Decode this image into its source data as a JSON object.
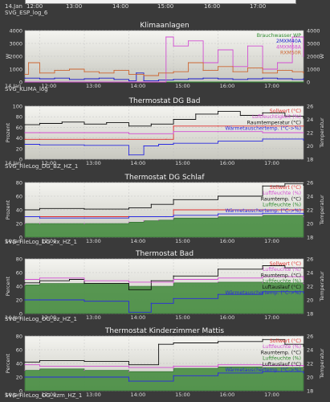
{
  "top": {
    "ticks": [
      "14.Jan",
      "12:00",
      "13:00",
      "14:00",
      "15:00",
      "16:00",
      "17:00"
    ],
    "file_label": "SVG_ESP_log_6"
  },
  "charts": [
    {
      "title": "Klimaanlagen",
      "file_label": "SVG_KLIMA_log",
      "ylabel_left": "W",
      "ylabel_right": "W",
      "left_ticks": [
        "4000",
        "3000",
        "2000",
        "1000",
        "0"
      ],
      "right_ticks": [
        "4000",
        "3000",
        "2000",
        "1000",
        "0"
      ],
      "x_ticks": [
        "14.Jan",
        "12:00",
        "13:00",
        "14:00",
        "15:00",
        "16:00",
        "17:00"
      ],
      "legend": [
        {
          "label": "Brauchwasser WP",
          "color": "#2e8b2e"
        },
        {
          "label": "2MXM40A",
          "color": "#1a1acc"
        },
        {
          "label": "4MXM68A",
          "color": "#d24fd2"
        },
        {
          "label": "RXM50R",
          "color": "#cc6633"
        }
      ]
    },
    {
      "title": "Thermostat DG Bad",
      "file_label": "SVG_FileLog_DG_BZ_HZ_1",
      "ylabel_left": "Prozent",
      "ylabel_right": "Temperatur",
      "left_ticks": [
        "100",
        "80",
        "60",
        "40",
        "20",
        "0"
      ],
      "right_ticks": [
        "26",
        "24",
        "22",
        "20",
        "18"
      ],
      "x_ticks": [
        "14.Jan",
        "12:00",
        "13:00",
        "14:00",
        "15:00",
        "16:00",
        "17:00"
      ],
      "legend": [
        {
          "label": "Sollwert (°C)",
          "color": "#e03030"
        },
        {
          "label": "Luftfeuchtigkeit (%)",
          "color": "#d24fd2"
        },
        {
          "label": "Raumtemperatur (°C)",
          "color": "#111111"
        },
        {
          "label": "Wärmetauschertemp. (°C->%)",
          "color": "#2a2ae0"
        }
      ]
    },
    {
      "title": "Thermostat DG Schlaf",
      "file_label": "SVG_FileLog_DG_xx_HZ_1",
      "ylabel_left": "Prozent",
      "ylabel_right": "Temperatur",
      "left_ticks": [
        "80",
        "60",
        "40",
        "20",
        "0"
      ],
      "right_ticks": [
        "26",
        "24",
        "22",
        "20",
        "18"
      ],
      "x_ticks": [
        "14.Jan",
        "12:00",
        "13:00",
        "14:00",
        "15:00",
        "16:00",
        "17:00"
      ],
      "legend": [
        {
          "label": "Sollwert (°C)",
          "color": "#e03030"
        },
        {
          "label": "Luftfeuchte (%)",
          "color": "#d24fd2"
        },
        {
          "label": "Raumtemp. (°C)",
          "color": "#111111"
        },
        {
          "label": "Luftfeuchte (%)",
          "color": "#2e8b2e"
        },
        {
          "label": "Wärmetauschertemp. (°C->%)",
          "color": "#2a2ae0"
        }
      ]
    },
    {
      "title": "Thermostat Bad",
      "file_label": "SVG_FileLog_OG_bz_HZ_1",
      "ylabel_left": "Percent",
      "ylabel_right": "Temperatur",
      "left_ticks": [
        "80",
        "60",
        "40",
        "20",
        "0"
      ],
      "right_ticks": [
        "26",
        "24",
        "22",
        "20",
        "18"
      ],
      "x_ticks": [
        "14.Jan",
        "12:00",
        "13:00",
        "14:00",
        "15:00",
        "16:00",
        "17:00"
      ],
      "legend": [
        {
          "label": "Sollwert (°C)",
          "color": "#e03030"
        },
        {
          "label": "Luftfeuchte (%)",
          "color": "#d24fd2"
        },
        {
          "label": "Raumtemp. (°C)",
          "color": "#111111"
        },
        {
          "label": "Luftfeuchte (%)",
          "color": "#2e8b2e"
        },
        {
          "label": "Luftauslauf (°C)",
          "color": "#111111"
        },
        {
          "label": "Wärmetauschertemp. (°C->%)",
          "color": "#2a2ae0"
        }
      ]
    },
    {
      "title": "Thermostat Kinderzimmer Mattis",
      "file_label": "SVG_FileLog_OG_kzm_HZ_1",
      "ylabel_left": "Percent",
      "ylabel_right": "Temperatur",
      "left_ticks": [
        "80",
        "60",
        "40",
        "20",
        "0"
      ],
      "right_ticks": [
        "26",
        "24",
        "22",
        "20",
        "18"
      ],
      "x_ticks": [
        "14.Jan",
        "12:00",
        "13:00",
        "14:00",
        "15:00",
        "16:00",
        "17:00"
      ],
      "legend": [
        {
          "label": "Sollwert (°C)",
          "color": "#e03030"
        },
        {
          "label": "Luftfeuchte (%)",
          "color": "#d24fd2"
        },
        {
          "label": "Raumtemp. (°C)",
          "color": "#111111"
        },
        {
          "label": "Luftfeuchte (%)",
          "color": "#2e8b2e"
        },
        {
          "label": "Luftauslauf (°C)",
          "color": "#111111"
        },
        {
          "label": "Wärmetauschertemp. (°C->%)",
          "color": "#2a2ae0"
        }
      ]
    }
  ],
  "chart_data": [
    {
      "type": "line",
      "title": "Klimaanlagen",
      "ylabel": "W",
      "ylim": [
        0,
        4000
      ],
      "x_range": [
        "11:40",
        "17:55"
      ],
      "series": [
        {
          "name": "Brauchwasser WP",
          "x": [
            "11:40",
            "12:00",
            "12:20",
            "12:40",
            "13:00",
            "13:20",
            "13:40",
            "14:00",
            "14:20",
            "14:40",
            "15:00",
            "15:20",
            "15:40",
            "16:00",
            "16:20",
            "16:40",
            "17:00",
            "17:20",
            "17:40",
            "17:55"
          ],
          "values": [
            0,
            0,
            0,
            0,
            0,
            0,
            0,
            0,
            0,
            0,
            0,
            0,
            0,
            0,
            0,
            0,
            0,
            0,
            0,
            0
          ]
        },
        {
          "name": "2MXM40A",
          "x": [
            "11:40",
            "12:00",
            "12:20",
            "12:40",
            "13:00",
            "13:20",
            "13:40",
            "14:00",
            "14:10",
            "14:20",
            "14:40",
            "15:00",
            "15:20",
            "15:40",
            "16:00",
            "16:20",
            "16:40",
            "17:00",
            "17:20",
            "17:40",
            "17:55"
          ],
          "values": [
            300,
            250,
            300,
            200,
            250,
            300,
            200,
            100,
            700,
            100,
            150,
            200,
            250,
            300,
            250,
            200,
            250,
            300,
            250,
            200,
            250
          ]
        },
        {
          "name": "4MXM68A",
          "x": [
            "11:40",
            "12:00",
            "12:20",
            "12:40",
            "13:00",
            "13:20",
            "13:40",
            "14:00",
            "14:20",
            "14:40",
            "14:50",
            "15:00",
            "15:20",
            "15:40",
            "16:00",
            "16:20",
            "16:40",
            "17:00",
            "17:20",
            "17:40",
            "17:55"
          ],
          "values": [
            0,
            0,
            0,
            0,
            0,
            0,
            0,
            0,
            0,
            0,
            3500,
            2800,
            3200,
            1500,
            2500,
            1200,
            2800,
            1000,
            1500,
            3500,
            2000
          ]
        },
        {
          "name": "RXM50R",
          "x": [
            "11:40",
            "11:45",
            "12:00",
            "12:20",
            "12:40",
            "13:00",
            "13:20",
            "13:40",
            "14:00",
            "14:20",
            "14:40",
            "15:00",
            "15:20",
            "15:40",
            "16:00",
            "16:20",
            "16:40",
            "17:00",
            "17:20",
            "17:40",
            "17:55"
          ],
          "values": [
            600,
            1500,
            700,
            900,
            1000,
            800,
            700,
            900,
            600,
            500,
            700,
            800,
            1500,
            900,
            1200,
            800,
            1100,
            700,
            900,
            800,
            700
          ]
        }
      ]
    },
    {
      "type": "line",
      "title": "Thermostat DG Bad",
      "ylabel": "Prozent",
      "ylim": [
        0,
        100
      ],
      "y2label": "Temperatur",
      "y2lim": [
        18,
        26
      ],
      "series": [
        {
          "name": "Sollwert (°C)",
          "axis": "right",
          "x": [
            "11:40",
            "12:00",
            "13:00",
            "14:00",
            "14:50",
            "15:00",
            "16:00",
            "17:00",
            "17:55"
          ],
          "values": [
            21,
            21,
            21,
            21,
            21,
            23,
            23,
            23,
            23
          ]
        },
        {
          "name": "Raumtemperatur (°C)",
          "axis": "right",
          "x": [
            "11:40",
            "12:00",
            "12:30",
            "13:00",
            "13:30",
            "14:00",
            "14:30",
            "15:00",
            "15:30",
            "16:00",
            "16:30",
            "17:00",
            "17:30",
            "17:55"
          ],
          "values": [
            23.2,
            23.4,
            23.6,
            23.3,
            23.5,
            23.0,
            23.3,
            24.0,
            24.8,
            25.2,
            24.6,
            25.0,
            24.5,
            24.2
          ]
        },
        {
          "name": "Wärmetauschertemp. (°C->%)",
          "axis": "left",
          "x": [
            "11:40",
            "12:00",
            "13:00",
            "14:00",
            "14:20",
            "14:40",
            "15:00",
            "16:00",
            "17:00",
            "17:55"
          ],
          "values": [
            28,
            27,
            26,
            8,
            25,
            28,
            30,
            34,
            38,
            36
          ]
        },
        {
          "name": "Luftfeuchtigkeit (%)",
          "axis": "left",
          "x": [
            "11:40",
            "12:00",
            "13:00",
            "14:00",
            "15:00",
            "16:00",
            "17:00",
            "17:55"
          ],
          "values": [
            50,
            50,
            50,
            48,
            52,
            52,
            50,
            50
          ]
        }
      ]
    },
    {
      "type": "area",
      "title": "Thermostat DG Schlaf",
      "ylabel": "Prozent",
      "ylim": [
        0,
        80
      ],
      "y2label": "Temperatur",
      "y2lim": [
        18,
        26
      ],
      "series": [
        {
          "name": "Luftfeuchte (%)",
          "axis": "left",
          "x": [
            "11:40",
            "12:00",
            "13:00",
            "14:00",
            "14:20",
            "14:40",
            "15:00",
            "16:00",
            "17:00",
            "17:55"
          ],
          "values": [
            20,
            20,
            20,
            22,
            24,
            25,
            28,
            30,
            32,
            30
          ]
        },
        {
          "name": "Raumtemp. (°C)",
          "axis": "right",
          "x": [
            "11:40",
            "12:00",
            "13:00",
            "14:00",
            "14:30",
            "15:00",
            "16:00",
            "17:00",
            "17:30",
            "17:55"
          ],
          "values": [
            22.0,
            22.2,
            22.1,
            22.3,
            22.8,
            23.5,
            24.0,
            25.5,
            25.8,
            25.6
          ]
        },
        {
          "name": "Sollwert (°C)",
          "axis": "right",
          "x": [
            "11:40",
            "14:50",
            "15:00",
            "17:55"
          ],
          "values": [
            21,
            21,
            22,
            22
          ]
        },
        {
          "name": "Wärmetauschertemp. (°C->%)",
          "axis": "left",
          "x": [
            "11:40",
            "12:00",
            "13:00",
            "14:00",
            "15:00",
            "16:00",
            "17:00",
            "17:55"
          ],
          "values": [
            30,
            28,
            28,
            30,
            32,
            34,
            35,
            34
          ]
        }
      ]
    },
    {
      "type": "area",
      "title": "Thermostat Bad",
      "ylabel": "Percent",
      "ylim": [
        0,
        80
      ],
      "y2label": "Temperatur",
      "y2lim": [
        18,
        26
      ],
      "series": [
        {
          "name": "Luftfeuchte (%)",
          "axis": "left",
          "x": [
            "11:40",
            "12:00",
            "13:00",
            "14:00",
            "15:00",
            "16:00",
            "17:00",
            "17:55"
          ],
          "values": [
            42,
            44,
            44,
            40,
            45,
            46,
            45,
            44
          ]
        },
        {
          "name": "Raumtemp. (°C)",
          "axis": "right",
          "x": [
            "11:40",
            "12:00",
            "12:40",
            "13:00",
            "14:00",
            "14:30",
            "15:00",
            "16:00",
            "17:00",
            "17:30",
            "17:55"
          ],
          "values": [
            22.5,
            22.8,
            23.0,
            22.4,
            21.5,
            22.8,
            23.5,
            24.5,
            25.0,
            24.7,
            24.6
          ]
        },
        {
          "name": "Luftfeuchte (%) magenta",
          "axis": "left",
          "x": [
            "11:40",
            "12:00",
            "13:00",
            "14:00",
            "15:00",
            "16:00",
            "17:00",
            "17:55"
          ],
          "values": [
            50,
            52,
            48,
            46,
            50,
            52,
            54,
            50
          ]
        },
        {
          "name": "Wärmetauschertemp. (°C->%)",
          "axis": "left",
          "x": [
            "11:40",
            "12:00",
            "13:00",
            "14:00",
            "14:30",
            "15:00",
            "16:00",
            "17:00",
            "17:55"
          ],
          "values": [
            20,
            20,
            18,
            2,
            15,
            22,
            28,
            32,
            30
          ]
        }
      ]
    },
    {
      "type": "area",
      "title": "Thermostat Kinderzimmer Mattis",
      "ylabel": "Percent",
      "ylim": [
        0,
        80
      ],
      "y2label": "Temperatur",
      "y2lim": [
        18,
        26
      ],
      "series": [
        {
          "name": "Luftfeuchte (%)",
          "axis": "left",
          "x": [
            "11:40",
            "12:00",
            "13:00",
            "14:00",
            "15:00",
            "16:00",
            "17:00",
            "17:55"
          ],
          "values": [
            30,
            32,
            30,
            28,
            33,
            35,
            34,
            32
          ]
        },
        {
          "name": "Raumtemp. (°C)",
          "axis": "right",
          "x": [
            "11:40",
            "12:00",
            "13:00",
            "14:00",
            "14:40",
            "15:00",
            "16:00",
            "17:00",
            "17:30",
            "17:55"
          ],
          "values": [
            22.2,
            22.4,
            22.3,
            21.8,
            24.8,
            25.0,
            25.2,
            25.5,
            24.8,
            24.5
          ]
        },
        {
          "name": "Luftfeuchte (%) magenta",
          "axis": "left",
          "x": [
            "11:40",
            "12:00",
            "13:00",
            "14:00",
            "15:00",
            "16:00",
            "17:00",
            "17:55"
          ],
          "values": [
            38,
            36,
            36,
            34,
            36,
            38,
            37,
            36
          ]
        },
        {
          "name": "Wärmetauschertemp. (°C->%)",
          "axis": "left",
          "x": [
            "11:40",
            "12:00",
            "13:00",
            "14:00",
            "15:00",
            "16:00",
            "17:00",
            "17:55"
          ],
          "values": [
            20,
            20,
            20,
            14,
            22,
            26,
            28,
            26
          ]
        }
      ]
    }
  ]
}
